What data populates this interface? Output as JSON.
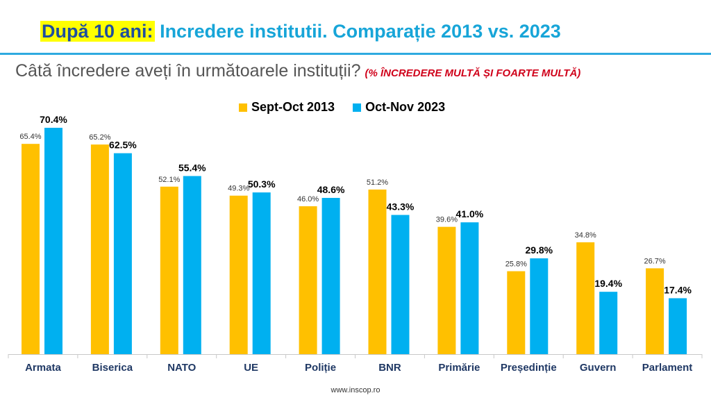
{
  "header": {
    "title_highlight": "După 10 ani:",
    "title_rest": "Incredere institutii. Comparație 2013 vs. 2023"
  },
  "question": {
    "text": "Câtă încredere aveți în următoarele instituții?",
    "note": "(% ÎNCREDERE MULTĂ ȘI FOARTE MULTĂ)"
  },
  "legend": {
    "s1": "Sept-Oct 2013",
    "s2": "Oct-Nov 2023"
  },
  "footer": "www.inscop.ro",
  "colors": {
    "s1": "#ffc000",
    "s2": "#00b0f0"
  },
  "chart_data": {
    "type": "bar",
    "categories": [
      "Armata",
      "Biserica",
      "NATO",
      "UE",
      "Poliție",
      "BNR",
      "Primărie",
      "Președinție",
      "Guvern",
      "Parlament"
    ],
    "series": [
      {
        "name": "Sept-Oct 2013",
        "values": [
          65.4,
          65.2,
          52.1,
          49.3,
          46.0,
          51.2,
          39.6,
          25.8,
          34.8,
          26.7
        ]
      },
      {
        "name": "Oct-Nov 2023",
        "values": [
          70.4,
          62.5,
          55.4,
          50.3,
          48.6,
          43.3,
          41.0,
          29.8,
          19.4,
          17.4
        ]
      }
    ],
    "labels": [
      [
        "65.4%",
        "65.2%",
        "52.1%",
        "49.3%",
        "46.0%",
        "51.2%",
        "39.6%",
        "25.8%",
        "34.8%",
        "26.7%"
      ],
      [
        "70.4%",
        "62.5%",
        "55.4%",
        "50.3%",
        "48.6%",
        "43.3%",
        "41.0%",
        "29.8%",
        "19.4%",
        "17.4%"
      ]
    ],
    "ylim": [
      0,
      73
    ],
    "grid": false,
    "legend_position": "top-center"
  }
}
